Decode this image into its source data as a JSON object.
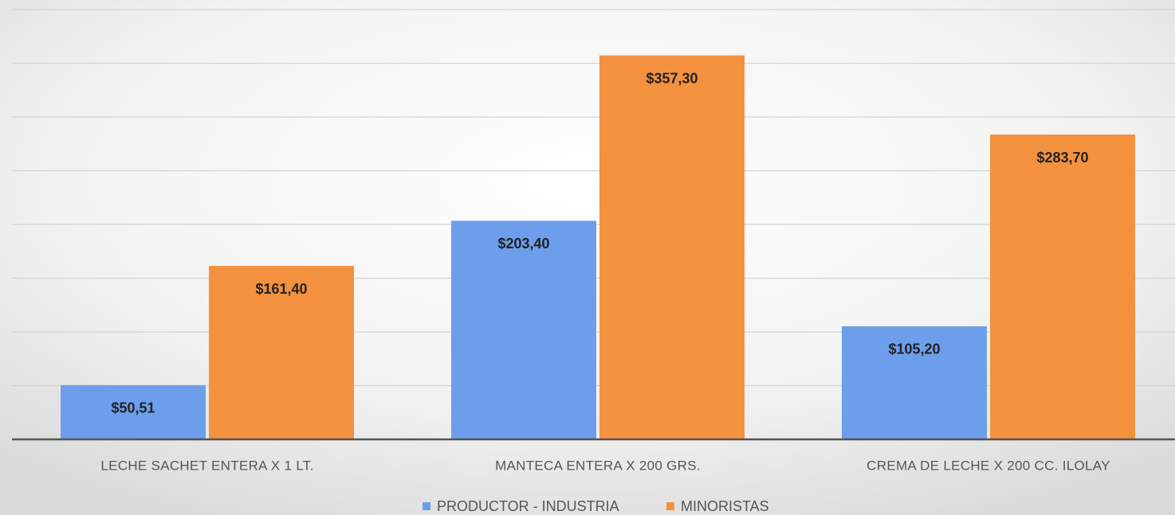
{
  "chart_data": {
    "type": "bar",
    "categories": [
      "LECHE SACHET ENTERA X 1 LT.",
      "MANTECA ENTERA X 200 GRS.",
      "CREMA DE LECHE X 200 CC. ILOLAY"
    ],
    "series": [
      {
        "name": "PRODUCTOR - INDUSTRIA",
        "color": "#6d9eeb",
        "values": [
          50.51,
          203.4,
          105.2
        ],
        "value_labels": [
          "$50,51",
          "$203,40",
          "$105,20"
        ]
      },
      {
        "name": "MINORISTAS",
        "color": "#f4913f",
        "values": [
          161.4,
          357.3,
          283.7
        ],
        "value_labels": [
          "$161,40",
          "$357,30",
          "$283,70"
        ]
      }
    ],
    "ylim": [
      0,
      400
    ],
    "yticks": [
      0,
      50,
      100,
      150,
      200,
      250,
      300,
      350,
      400
    ],
    "grid": true
  }
}
